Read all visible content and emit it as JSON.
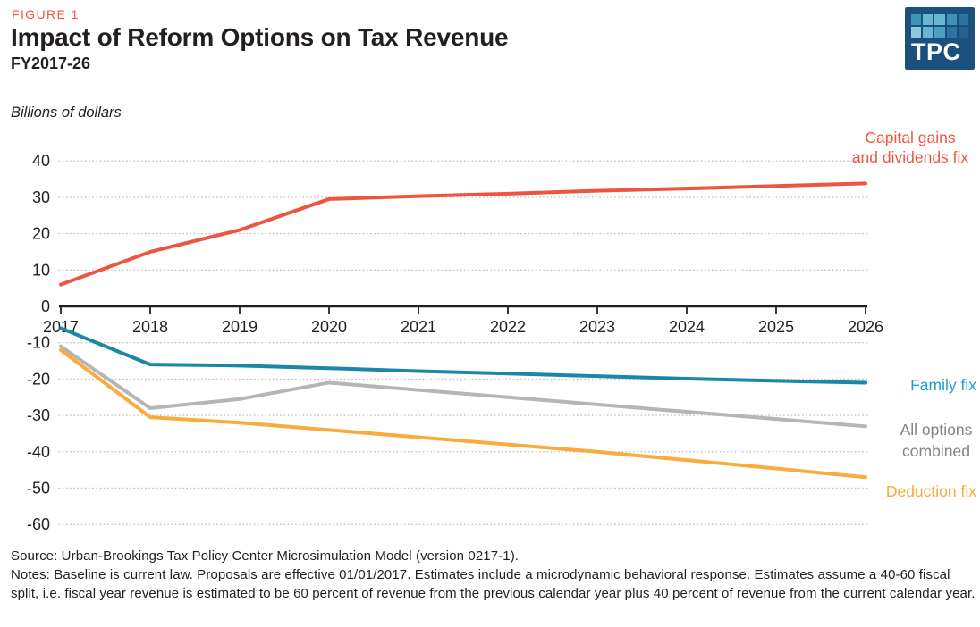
{
  "header": {
    "figure_label": "FIGURE 1",
    "title": "Impact of Reform Options on Tax Revenue",
    "subtitle": "FY2017-26",
    "units_label": "Billions of dollars"
  },
  "logo": {
    "text": "TPC",
    "bg_color": "#1b4f7e",
    "square_colors": [
      "#3f96b4",
      "#67b7d2",
      "#67b7d2",
      "#3f8fb6",
      "#2d739f",
      "#8cc7da",
      "#67b7d2",
      "#4aa0c0",
      "#2d739f",
      "#24618c"
    ]
  },
  "chart_data": {
    "type": "line",
    "title": "Impact of Reform Options on Tax Revenue",
    "subtitle": "FY2017-26",
    "ylabel": "Billions of dollars",
    "x": [
      2017,
      2018,
      2019,
      2020,
      2021,
      2022,
      2023,
      2024,
      2025,
      2026
    ],
    "series": [
      {
        "name": "Capital gains and dividends fix",
        "color": "#ee5541",
        "values": [
          6,
          15,
          21,
          29.5,
          30.3,
          31,
          31.8,
          32.4,
          33.1,
          33.8
        ]
      },
      {
        "name": "Family fix",
        "color": "#1b87a8",
        "values": [
          -6,
          -16,
          -16.3,
          -17,
          -17.8,
          -18.5,
          -19.2,
          -19.9,
          -20.5,
          -21
        ]
      },
      {
        "name": "All options combined",
        "color": "#b5b5b5",
        "values": [
          -11,
          -28,
          -25.5,
          -21,
          -23,
          -25,
          -27,
          -29,
          -31,
          -33
        ]
      },
      {
        "name": "Deduction fix",
        "color": "#f9ab3c",
        "values": [
          -12,
          -30.5,
          -32,
          -34,
          -36,
          -38,
          -40,
          -42.3,
          -44.6,
          -47
        ]
      }
    ],
    "ylim": [
      -60,
      40
    ],
    "yticks": [
      40,
      30,
      20,
      10,
      0,
      -10,
      -20,
      -30,
      -40,
      -50,
      -60
    ],
    "grid": "horizontal-dotted",
    "legend_position": "right-edge-annotations"
  },
  "annotations": {
    "capital_gains_line1": "Capital gains",
    "capital_gains_line2": "and dividends fix",
    "capital_gains_color": "#f0563f",
    "family": "Family fix",
    "family_color": "#1e9cd2",
    "all_options_line1": "All options",
    "all_options_line2": "combined",
    "all_options_color": "#808285",
    "deduction": "Deduction fix",
    "deduction_color": "#f9a83b"
  },
  "footer": {
    "source": "Source: Urban-Brookings Tax Policy Center Microsimulation Model (version 0217-1).",
    "notes": "Notes: Baseline is current law. Proposals are effective 01/01/2017. Estimates include a microdynamic behavioral response. Estimates assume a 40-60 fiscal split, i.e. fiscal year revenue is estimated to be 60 percent of revenue from the previous calendar year plus 40 percent of revenue from the current calendar year."
  }
}
